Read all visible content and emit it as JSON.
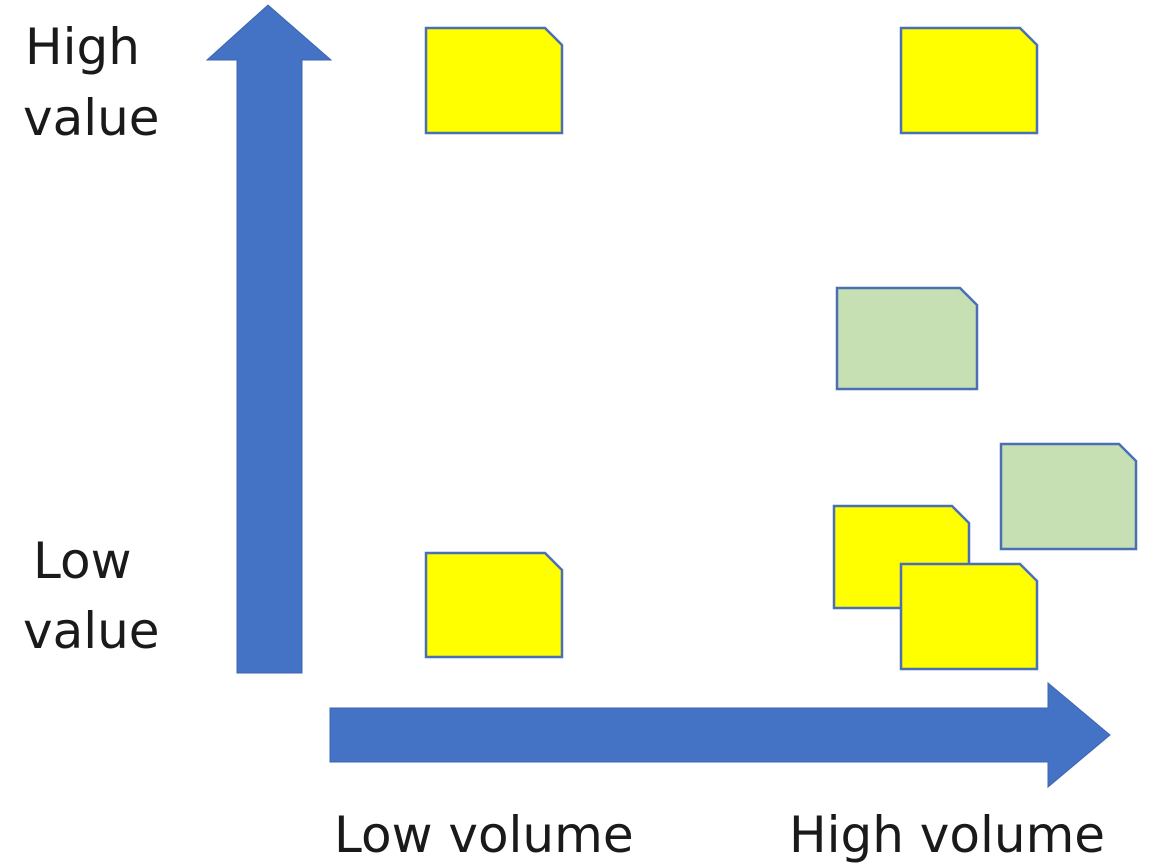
{
  "y_axis": {
    "high_label_lines": [
      "High",
      "value"
    ],
    "low_label_lines": [
      "Low",
      "value"
    ]
  },
  "x_axis": {
    "low_label": "Low volume",
    "high_label": "High volume"
  },
  "colors": {
    "arrow": "#4472c4",
    "note_border": "#4a6fb5",
    "note_yellow": "#ffff00",
    "note_green": "#c6e0b4"
  },
  "notes": [
    {
      "id": "note-1",
      "color": "yellow",
      "volume": "low",
      "value": "high"
    },
    {
      "id": "note-2",
      "color": "yellow",
      "volume": "high",
      "value": "high"
    },
    {
      "id": "note-3",
      "color": "green",
      "volume": "high",
      "value": "medium"
    },
    {
      "id": "note-4",
      "color": "green",
      "volume": "high",
      "value": "low"
    },
    {
      "id": "note-5",
      "color": "yellow",
      "volume": "high",
      "value": "low"
    },
    {
      "id": "note-6",
      "color": "yellow",
      "volume": "high",
      "value": "low"
    },
    {
      "id": "note-7",
      "color": "yellow",
      "volume": "low",
      "value": "low"
    }
  ]
}
